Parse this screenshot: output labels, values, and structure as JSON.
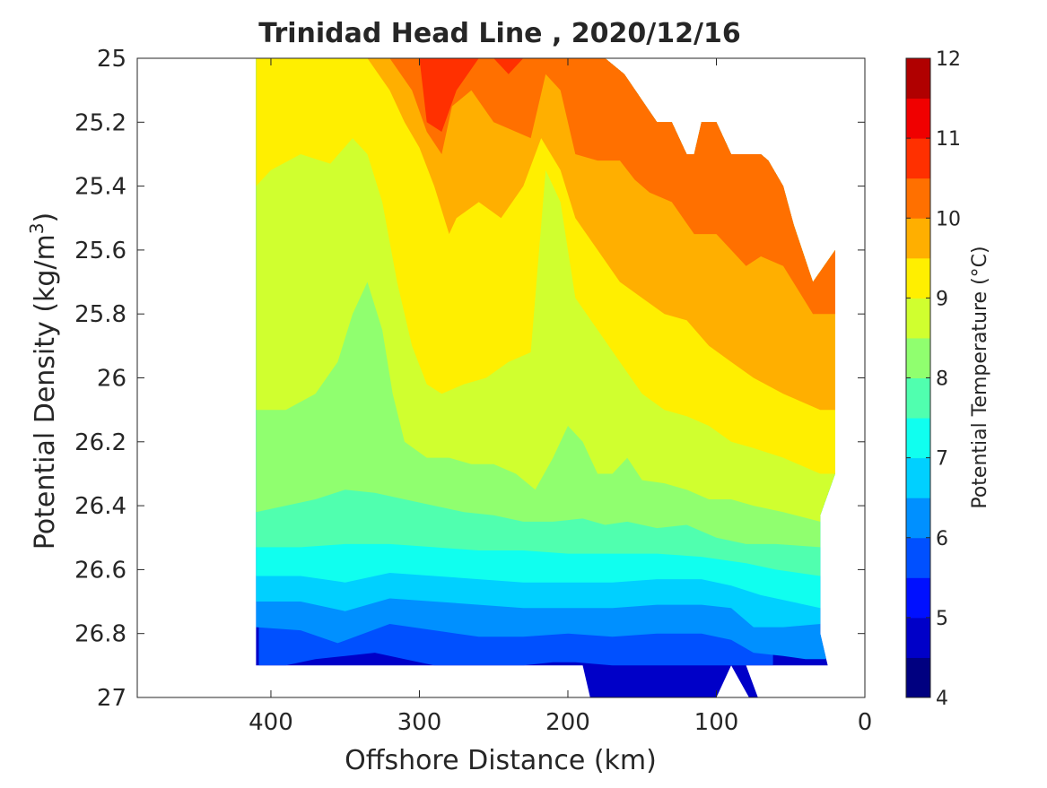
{
  "chart_data": {
    "type": "contour",
    "title": "Trinidad Head Line , 2020/12/16",
    "xlabel": "Offshore Distance (km)",
    "ylabel": "Potential Density (kg/m",
    "ylabel_sup": "3",
    "ylabel_close": ")",
    "xlim": [
      490,
      0
    ],
    "x_reversed": true,
    "ylim": [
      25,
      27
    ],
    "y_reversed": true,
    "x_ticks": [
      400,
      300,
      200,
      100,
      0
    ],
    "x_tick_labels": [
      "400",
      "300",
      "200",
      "100",
      "0"
    ],
    "y_ticks": [
      25,
      25.2,
      25.4,
      25.6,
      25.8,
      26,
      26.2,
      26.4,
      26.6,
      26.8,
      27
    ],
    "y_tick_labels": [
      "25",
      "25.2",
      "25.4",
      "25.6",
      "25.8",
      "26",
      "26.2",
      "26.4",
      "26.6",
      "26.8",
      "27"
    ],
    "grid": false,
    "colorbar": {
      "label": "Potential Temperature (°C)",
      "range": [
        4,
        12
      ],
      "ticks": [
        4,
        5,
        6,
        7,
        8,
        9,
        10,
        11,
        12
      ],
      "tick_labels": [
        "4",
        "5",
        "6",
        "7",
        "8",
        "9",
        "10",
        "11",
        "12"
      ],
      "bands": [
        {
          "from": 4.0,
          "to": 4.5,
          "color": "#000080"
        },
        {
          "from": 4.5,
          "to": 5.0,
          "color": "#0000c8"
        },
        {
          "from": 5.0,
          "to": 5.5,
          "color": "#0010ff"
        },
        {
          "from": 5.5,
          "to": 6.0,
          "color": "#0050ff"
        },
        {
          "from": 6.0,
          "to": 6.5,
          "color": "#0090ff"
        },
        {
          "from": 6.5,
          "to": 7.0,
          "color": "#00d0ff"
        },
        {
          "from": 7.0,
          "to": 7.5,
          "color": "#10ffef"
        },
        {
          "from": 7.5,
          "to": 8.0,
          "color": "#50ffaf"
        },
        {
          "from": 8.0,
          "to": 8.5,
          "color": "#90ff6f"
        },
        {
          "from": 8.5,
          "to": 9.0,
          "color": "#d0ff2f"
        },
        {
          "from": 9.0,
          "to": 9.5,
          "color": "#ffef00"
        },
        {
          "from": 9.5,
          "to": 10.0,
          "color": "#ffaf00"
        },
        {
          "from": 10.0,
          "to": 10.5,
          "color": "#ff7000"
        },
        {
          "from": 10.5,
          "to": 11.0,
          "color": "#ff3000"
        },
        {
          "from": 11.0,
          "to": 11.5,
          "color": "#f00000"
        },
        {
          "from": 11.5,
          "to": 12.0,
          "color": "#b00000"
        }
      ]
    },
    "isotherms": [
      {
        "level": 10.5,
        "color": "#ff3000",
        "points": [
          [
            300,
            25
          ],
          [
            295,
            25.2
          ],
          [
            285,
            25.23
          ],
          [
            275,
            25.1
          ],
          [
            260,
            25
          ],
          [
            250,
            25
          ],
          [
            240,
            25.05
          ],
          [
            230,
            25
          ],
          [
            200,
            25
          ],
          [
            190,
            25
          ],
          [
            175,
            25
          ],
          [
            162,
            25.05
          ],
          [
            140,
            25.2
          ],
          [
            130,
            25.2
          ],
          [
            120,
            25.3
          ],
          [
            115,
            25.3
          ],
          [
            110,
            25.2
          ],
          [
            100,
            25.2
          ],
          [
            90,
            25.3
          ],
          [
            70,
            25.3
          ],
          [
            65,
            25.32
          ],
          [
            55,
            25.4
          ],
          [
            48,
            25.52
          ]
        ]
      },
      {
        "level": 10.0,
        "color": "#ff7000",
        "points": [
          [
            320,
            25
          ],
          [
            305,
            25.1
          ],
          [
            295,
            25.23
          ],
          [
            285,
            25.3
          ],
          [
            278,
            25.15
          ],
          [
            265,
            25.1
          ],
          [
            250,
            25.2
          ],
          [
            240,
            25.22
          ],
          [
            225,
            25.25
          ],
          [
            215,
            25.05
          ],
          [
            205,
            25.1
          ],
          [
            195,
            25.3
          ],
          [
            180,
            25.32
          ],
          [
            165,
            25.32
          ],
          [
            155,
            25.38
          ],
          [
            145,
            25.42
          ],
          [
            130,
            25.45
          ],
          [
            115,
            25.55
          ],
          [
            100,
            25.55
          ],
          [
            90,
            25.6
          ],
          [
            80,
            25.65
          ],
          [
            70,
            25.62
          ],
          [
            55,
            25.65
          ],
          [
            35,
            25.8
          ]
        ]
      },
      {
        "level": 9.5,
        "color": "#ffaf00",
        "points": [
          [
            335,
            25
          ],
          [
            320,
            25.1
          ],
          [
            310,
            25.2
          ],
          [
            300,
            25.28
          ],
          [
            290,
            25.4
          ],
          [
            280,
            25.55
          ],
          [
            275,
            25.5
          ],
          [
            260,
            25.45
          ],
          [
            245,
            25.5
          ],
          [
            230,
            25.4
          ],
          [
            218,
            25.25
          ],
          [
            205,
            25.35
          ],
          [
            195,
            25.5
          ],
          [
            180,
            25.6
          ],
          [
            165,
            25.7
          ],
          [
            150,
            25.75
          ],
          [
            135,
            25.8
          ],
          [
            120,
            25.82
          ],
          [
            105,
            25.9
          ],
          [
            90,
            25.95
          ],
          [
            75,
            26
          ],
          [
            55,
            26.05
          ],
          [
            30,
            26.1
          ]
        ]
      },
      {
        "level": 9.0,
        "color": "#ffef00",
        "points": [
          [
            410,
            25.4
          ],
          [
            400,
            25.35
          ],
          [
            380,
            25.3
          ],
          [
            360,
            25.33
          ],
          [
            345,
            25.25
          ],
          [
            335,
            25.3
          ],
          [
            325,
            25.45
          ],
          [
            315,
            25.7
          ],
          [
            305,
            25.9
          ],
          [
            295,
            26.02
          ],
          [
            285,
            26.05
          ],
          [
            270,
            26.02
          ],
          [
            255,
            26.0
          ],
          [
            240,
            25.95
          ],
          [
            225,
            25.92
          ],
          [
            215,
            25.35
          ],
          [
            205,
            25.45
          ],
          [
            195,
            25.75
          ],
          [
            180,
            25.85
          ],
          [
            165,
            25.95
          ],
          [
            150,
            26.05
          ],
          [
            135,
            26.1
          ],
          [
            120,
            26.12
          ],
          [
            105,
            26.15
          ],
          [
            90,
            26.2
          ],
          [
            75,
            26.22
          ],
          [
            55,
            26.25
          ],
          [
            30,
            26.3
          ]
        ]
      },
      {
        "level": 8.5,
        "color": "#d0ff2f",
        "points": [
          [
            410,
            26.1
          ],
          [
            390,
            26.1
          ],
          [
            370,
            26.05
          ],
          [
            355,
            25.95
          ],
          [
            345,
            25.8
          ],
          [
            335,
            25.7
          ],
          [
            325,
            25.85
          ],
          [
            318,
            26.05
          ],
          [
            310,
            26.2
          ],
          [
            295,
            26.25
          ],
          [
            280,
            26.25
          ],
          [
            265,
            26.27
          ],
          [
            250,
            26.27
          ],
          [
            235,
            26.3
          ],
          [
            222,
            26.35
          ],
          [
            210,
            26.25
          ],
          [
            200,
            26.15
          ],
          [
            190,
            26.2
          ],
          [
            180,
            26.3
          ],
          [
            170,
            26.3
          ],
          [
            160,
            26.25
          ],
          [
            150,
            26.32
          ],
          [
            135,
            26.33
          ],
          [
            120,
            26.35
          ],
          [
            105,
            26.38
          ],
          [
            90,
            26.38
          ],
          [
            75,
            26.4
          ],
          [
            55,
            26.42
          ],
          [
            30,
            26.45
          ]
        ]
      },
      {
        "level": 8.0,
        "color": "#90ff6f",
        "points": [
          [
            410,
            26.42
          ],
          [
            390,
            26.4
          ],
          [
            370,
            26.38
          ],
          [
            350,
            26.35
          ],
          [
            330,
            26.36
          ],
          [
            310,
            26.38
          ],
          [
            290,
            26.4
          ],
          [
            270,
            26.42
          ],
          [
            250,
            26.43
          ],
          [
            230,
            26.45
          ],
          [
            210,
            26.45
          ],
          [
            190,
            26.44
          ],
          [
            175,
            26.46
          ],
          [
            160,
            26.45
          ],
          [
            140,
            26.47
          ],
          [
            120,
            26.46
          ],
          [
            100,
            26.5
          ],
          [
            80,
            26.52
          ],
          [
            60,
            26.52
          ],
          [
            30,
            26.53
          ]
        ]
      },
      {
        "level": 7.5,
        "color": "#50ffaf",
        "points": [
          [
            410,
            26.53
          ],
          [
            380,
            26.53
          ],
          [
            350,
            26.52
          ],
          [
            320,
            26.52
          ],
          [
            290,
            26.53
          ],
          [
            260,
            26.54
          ],
          [
            230,
            26.54
          ],
          [
            200,
            26.55
          ],
          [
            170,
            26.55
          ],
          [
            140,
            26.55
          ],
          [
            110,
            26.56
          ],
          [
            80,
            26.58
          ],
          [
            60,
            26.6
          ],
          [
            30,
            26.62
          ]
        ]
      },
      {
        "level": 7.0,
        "color": "#10ffef",
        "points": [
          [
            410,
            26.62
          ],
          [
            380,
            26.62
          ],
          [
            350,
            26.64
          ],
          [
            320,
            26.61
          ],
          [
            290,
            26.62
          ],
          [
            260,
            26.63
          ],
          [
            230,
            26.64
          ],
          [
            200,
            26.64
          ],
          [
            170,
            26.64
          ],
          [
            140,
            26.63
          ],
          [
            110,
            26.63
          ],
          [
            90,
            26.65
          ],
          [
            70,
            26.68
          ],
          [
            50,
            26.7
          ],
          [
            30,
            26.72
          ]
        ]
      },
      {
        "level": 6.5,
        "color": "#00d0ff",
        "points": [
          [
            410,
            26.7
          ],
          [
            380,
            26.7
          ],
          [
            350,
            26.73
          ],
          [
            320,
            26.69
          ],
          [
            290,
            26.7
          ],
          [
            260,
            26.71
          ],
          [
            230,
            26.72
          ],
          [
            200,
            26.72
          ],
          [
            170,
            26.72
          ],
          [
            140,
            26.71
          ],
          [
            110,
            26.71
          ],
          [
            90,
            26.72
          ],
          [
            75,
            26.78
          ],
          [
            55,
            26.78
          ],
          [
            30,
            26.77
          ]
        ]
      },
      {
        "level": 6.0,
        "color": "#0090ff",
        "points": [
          [
            410,
            26.78
          ],
          [
            380,
            26.79
          ],
          [
            355,
            26.83
          ],
          [
            320,
            26.77
          ],
          [
            290,
            26.79
          ],
          [
            260,
            26.81
          ],
          [
            230,
            26.81
          ],
          [
            200,
            26.8
          ],
          [
            170,
            26.81
          ],
          [
            140,
            26.8
          ],
          [
            110,
            26.8
          ],
          [
            90,
            26.82
          ],
          [
            75,
            26.86
          ],
          [
            55,
            26.87
          ],
          [
            40,
            26.88
          ]
        ]
      },
      {
        "level": 5.5,
        "color": "#0050ff",
        "points": [
          [
            390,
            26.9
          ],
          [
            370,
            26.88
          ],
          [
            350,
            26.87
          ],
          [
            330,
            26.86
          ],
          [
            310,
            26.88
          ],
          [
            290,
            26.9
          ],
          [
            250,
            26.9
          ],
          [
            230,
            26.9
          ],
          [
            210,
            26.89
          ],
          [
            195,
            26.89
          ],
          [
            170,
            26.9
          ],
          [
            140,
            26.9
          ],
          [
            110,
            26.9
          ],
          [
            90,
            26.9
          ],
          [
            80,
            26.9
          ]
        ]
      }
    ],
    "data_extent": [
      [
        410,
        25
      ],
      [
        190,
        25
      ],
      [
        175,
        25
      ],
      [
        162,
        25.05
      ],
      [
        140,
        25.2
      ],
      [
        130,
        25.2
      ],
      [
        120,
        25.3
      ],
      [
        115,
        25.3
      ],
      [
        110,
        25.2
      ],
      [
        100,
        25.2
      ],
      [
        90,
        25.3
      ],
      [
        70,
        25.3
      ],
      [
        65,
        25.32
      ],
      [
        55,
        25.4
      ],
      [
        48,
        25.52
      ],
      [
        35,
        25.7
      ],
      [
        20,
        25.6
      ],
      [
        20,
        26.3
      ],
      [
        30,
        26.43
      ],
      [
        30,
        26.8
      ],
      [
        25,
        26.9
      ],
      [
        40,
        26.9
      ],
      [
        80,
        26.9
      ],
      [
        72,
        27
      ],
      [
        78,
        27
      ],
      [
        90,
        26.9
      ],
      [
        100,
        27
      ],
      [
        185,
        27
      ],
      [
        190,
        26.9
      ],
      [
        410,
        26.9
      ]
    ]
  }
}
